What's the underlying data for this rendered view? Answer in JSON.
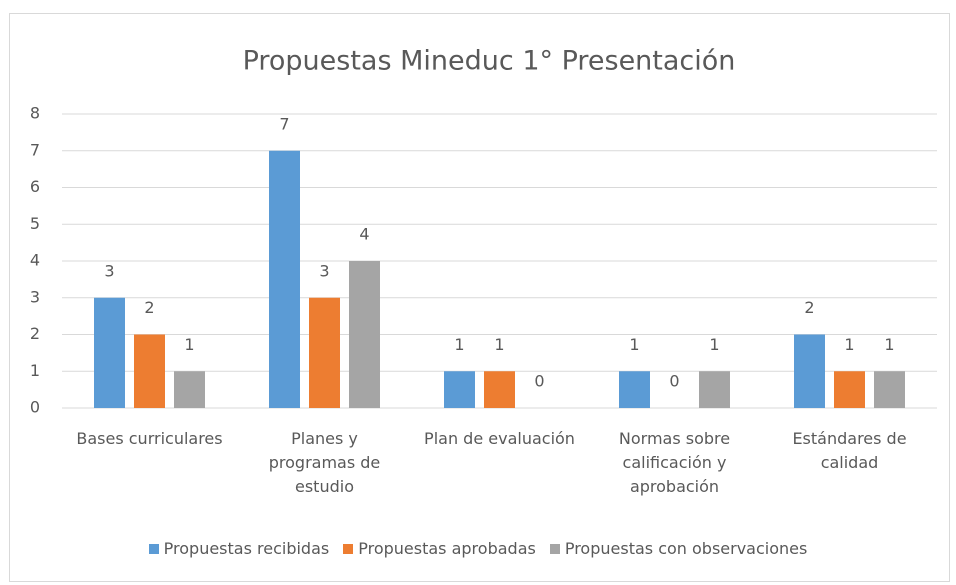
{
  "chart_data": {
    "type": "bar",
    "title": "Propuestas Mineduc 1° Presentación",
    "categories": [
      "Bases curriculares",
      "Planes y programas de estudio",
      "Plan de evaluación",
      "Normas sobre calificación y aprobación",
      "Estándares de calidad"
    ],
    "series": [
      {
        "name": "Propuestas recibidas",
        "color": "#5b9bd5",
        "values": [
          3,
          7,
          1,
          1,
          2
        ]
      },
      {
        "name": "Propuestas aprobadas",
        "color": "#ed7d31",
        "values": [
          2,
          3,
          1,
          0,
          1
        ]
      },
      {
        "name": "Propuestas con observaciones",
        "color": "#a5a5a5",
        "values": [
          1,
          4,
          0,
          1,
          1
        ]
      }
    ],
    "ylim": [
      0,
      8
    ],
    "yticks": [
      0,
      1,
      2,
      3,
      4,
      5,
      6,
      7,
      8
    ],
    "grid": true,
    "legend": "bottom",
    "data_labels": true
  }
}
